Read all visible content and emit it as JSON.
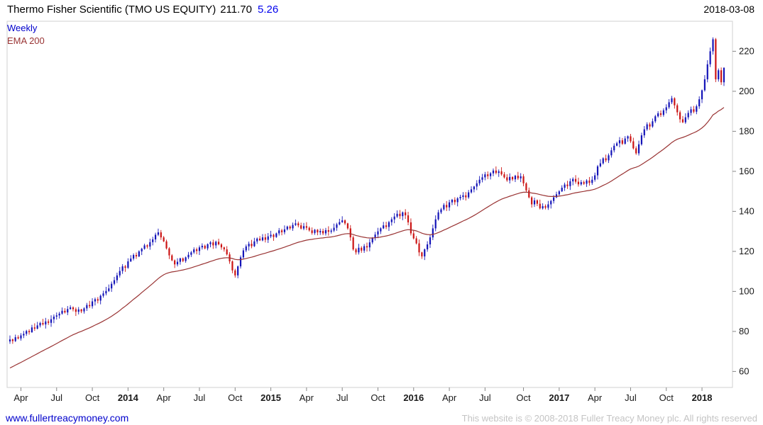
{
  "header": {
    "title": "Thermo Fisher Scientific (TMO US EQUITY)",
    "last_price": "211.70",
    "change": "5.26",
    "date": "2018-03-08"
  },
  "legend": {
    "series": "Weekly",
    "overlay": "EMA 200"
  },
  "footer": {
    "link": "www.fullertreacymoney.com",
    "copyright": "This website is © 2008-2018 Fuller Treacy Money plc. All rights reserved"
  },
  "colors": {
    "up_candle": "#1414b8",
    "down_candle": "#cc1414",
    "ema_line": "#993333",
    "weekly_legend": "#0000cc",
    "ema_legend": "#993333",
    "change_text": "#0000ee",
    "title_text": "#000000",
    "link_text": "#0000cc",
    "copyright_text": "#c4c4c4",
    "axis_text": "#1a1a1a",
    "frame": "#d0d0d0"
  },
  "chart_data": {
    "type": "candlestick",
    "interval": "weekly",
    "title": "Thermo Fisher Scientific (TMO US EQUITY) 211.70 5.26",
    "legend_entries": [
      "Weekly",
      "EMA 200"
    ],
    "legend_position": "top-left",
    "grid": false,
    "ylim": [
      52,
      235
    ],
    "yticks": [
      60,
      80,
      100,
      120,
      140,
      160,
      180,
      200,
      220
    ],
    "y_axis_side": "right",
    "xticks": [
      {
        "label": "Apr",
        "week": 4
      },
      {
        "label": "Jul",
        "week": 17
      },
      {
        "label": "Oct",
        "week": 30
      },
      {
        "label": "2014",
        "week": 43,
        "bold": true
      },
      {
        "label": "Apr",
        "week": 56
      },
      {
        "label": "Jul",
        "week": 69
      },
      {
        "label": "Oct",
        "week": 82
      },
      {
        "label": "2015",
        "week": 95,
        "bold": true
      },
      {
        "label": "Apr",
        "week": 108
      },
      {
        "label": "Jul",
        "week": 121
      },
      {
        "label": "Oct",
        "week": 134
      },
      {
        "label": "2016",
        "week": 147,
        "bold": true
      },
      {
        "label": "Apr",
        "week": 160
      },
      {
        "label": "Jul",
        "week": 173
      },
      {
        "label": "Oct",
        "week": 187
      },
      {
        "label": "2017",
        "week": 200,
        "bold": true
      },
      {
        "label": "Apr",
        "week": 213
      },
      {
        "label": "Jul",
        "week": 226
      },
      {
        "label": "Oct",
        "week": 239
      },
      {
        "label": "2018",
        "week": 252,
        "bold": true
      }
    ],
    "last_price": 211.7,
    "change": 5.26,
    "ema_overlay": {
      "label": "EMA 200",
      "start_value": 61,
      "end_value_approx": 190
    },
    "weekly_closes": [
      76.0,
      75.2,
      77.1,
      76.5,
      78.0,
      78.8,
      80.2,
      79.6,
      82.0,
      81.4,
      83.0,
      84.2,
      83.5,
      85.0,
      84.3,
      86.1,
      87.4,
      88.0,
      88.9,
      90.3,
      89.5,
      91.2,
      92.0,
      91.1,
      89.8,
      91.0,
      90.0,
      91.5,
      93.2,
      92.6,
      95.0,
      96.1,
      95.4,
      97.8,
      99.0,
      100.2,
      101.5,
      103.8,
      105.6,
      108.0,
      110.2,
      112.5,
      111.8,
      115.0,
      116.4,
      118.2,
      117.5,
      120.0,
      121.3,
      123.0,
      122.4,
      124.6,
      126.0,
      128.3,
      129.5,
      127.0,
      125.0,
      121.5,
      118.0,
      115.5,
      113.5,
      114.8,
      116.5,
      115.2,
      117.0,
      118.3,
      119.5,
      121.0,
      120.2,
      122.0,
      122.8,
      121.5,
      123.6,
      124.5,
      123.0,
      124.8,
      123.5,
      122.0,
      121.0,
      118.5,
      115.0,
      110.5,
      108.0,
      112.5,
      117.0,
      120.5,
      122.5,
      123.8,
      122.6,
      125.0,
      126.4,
      125.5,
      127.0,
      125.8,
      127.5,
      128.3,
      127.2,
      129.0,
      130.5,
      129.6,
      131.0,
      132.4,
      131.5,
      133.2,
      134.0,
      133.0,
      131.4,
      132.6,
      131.8,
      130.5,
      129.2,
      130.8,
      129.5,
      130.2,
      129.0,
      130.6,
      129.8,
      130.4,
      131.8,
      133.5,
      134.6,
      135.5,
      134.0,
      131.5,
      127.0,
      121.0,
      119.5,
      121.8,
      120.4,
      122.6,
      122.0,
      124.5,
      126.8,
      128.4,
      130.0,
      131.5,
      133.0,
      132.2,
      134.6,
      136.0,
      137.4,
      138.8,
      137.6,
      139.5,
      138.0,
      134.5,
      129.0,
      126.5,
      124.0,
      119.5,
      117.5,
      121.0,
      123.5,
      127.0,
      131.5,
      136.0,
      139.5,
      141.0,
      143.2,
      142.0,
      144.5,
      145.8,
      144.6,
      146.5,
      147.2,
      148.0,
      147.0,
      149.5,
      151.0,
      152.4,
      154.0,
      155.8,
      157.0,
      158.5,
      157.6,
      159.0,
      160.4,
      159.2,
      160.0,
      158.5,
      157.0,
      155.5,
      157.2,
      156.0,
      157.8,
      156.5,
      157.5,
      154.0,
      150.5,
      147.0,
      143.5,
      145.5,
      143.8,
      141.5,
      142.6,
      141.8,
      143.5,
      145.2,
      147.0,
      148.5,
      150.0,
      151.8,
      153.4,
      152.6,
      155.0,
      156.2,
      154.8,
      153.5,
      154.6,
      153.8,
      155.4,
      154.2,
      155.8,
      158.0,
      162.5,
      164.0,
      166.5,
      165.5,
      168.0,
      170.5,
      172.8,
      174.0,
      175.5,
      173.8,
      176.4,
      177.5,
      175.0,
      171.5,
      169.0,
      173.5,
      178.0,
      181.0,
      183.5,
      182.4,
      185.0,
      187.5,
      189.0,
      188.2,
      190.5,
      192.0,
      194.5,
      196.5,
      193.0,
      189.5,
      186.0,
      184.5,
      187.0,
      189.2,
      191.0,
      189.8,
      192.5,
      196.0,
      200.5,
      206.0,
      213.5,
      220.0,
      226.0,
      206.0,
      210.5,
      204.5,
      211.7
    ]
  }
}
